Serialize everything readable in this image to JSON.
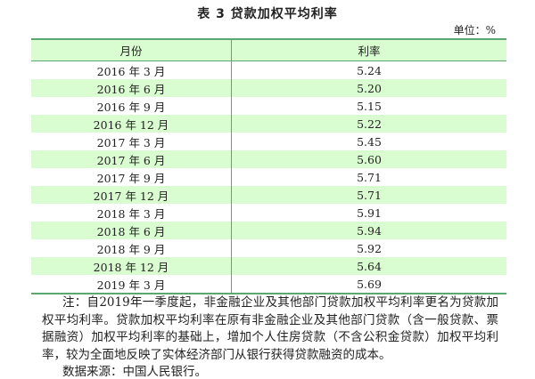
{
  "title": "表 3 贷款加权平均利率",
  "unit": "单位：%",
  "table": {
    "headers": [
      "月份",
      "利率"
    ],
    "rows": [
      [
        "2016 年 3 月",
        "5.24"
      ],
      [
        "2016 年 6 月",
        "5.20"
      ],
      [
        "2016 年 9 月",
        "5.15"
      ],
      [
        "2016 年 12 月",
        "5.22"
      ],
      [
        "2017 年 3 月",
        "5.45"
      ],
      [
        "2017 年 6 月",
        "5.60"
      ],
      [
        "2017 年 9 月",
        "5.71"
      ],
      [
        "2017 年 12 月",
        "5.71"
      ],
      [
        "2018 年 3 月",
        "5.91"
      ],
      [
        "2018 年 6 月",
        "5.94"
      ],
      [
        "2018 年 9 月",
        "5.92"
      ],
      [
        "2018 年 12 月",
        "5.64"
      ],
      [
        "2019 年 3 月",
        "5.69"
      ]
    ]
  },
  "note": "注：自2019年一季度起，非金融企业及其他部门贷款加权平均利率更名为贷款加权平均利率。贷款加权平均利率在原有非金融企业及其他部门贷款（含一般贷款、票据融资）加权平均利率的基础上，增加个人住房贷款（不含公积金贷款）加权平均利率，较为全面地反映了实体经济部门从银行获得贷款融资的成本。",
  "source": "数据来源：中国人民银行。",
  "colors": {
    "row_stripe": "#d9fdd0",
    "rule": "#5aa870"
  }
}
